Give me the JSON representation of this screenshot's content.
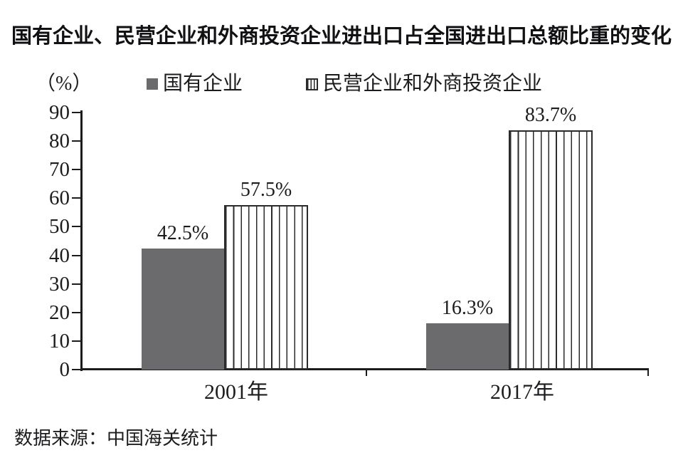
{
  "title": "国有企业、民营企业和外商投资企业进出口占全国进出口总额比重的变化",
  "y_axis_unit_label": "（%）",
  "legend": [
    {
      "name": "国有企业",
      "style": "solid"
    },
    {
      "name": "民营企业和外商投资企业",
      "style": "striped"
    }
  ],
  "source": "数据来源：中国海关统计",
  "colors": {
    "solid_bar": "#6b6b6e",
    "stripe_line": "#2b2b2e",
    "axis": "#1c1c1f",
    "text": "#1c1c1f"
  },
  "chart_data": {
    "type": "bar",
    "categories": [
      "2001年",
      "2017年"
    ],
    "series": [
      {
        "name": "国有企业",
        "style": "solid",
        "values": [
          42.5,
          16.3
        ],
        "labels": [
          "42.5%",
          "16.3%"
        ]
      },
      {
        "name": "民营企业和外商投资企业",
        "style": "striped",
        "values": [
          57.5,
          83.7
        ],
        "labels": [
          "57.5%",
          "83.7%"
        ]
      }
    ],
    "ylabel": "（%）",
    "ylim": [
      0,
      90
    ],
    "yticks": [
      0,
      10,
      20,
      30,
      40,
      50,
      60,
      70,
      80,
      90
    ],
    "grid": false,
    "legend_position": "top"
  }
}
